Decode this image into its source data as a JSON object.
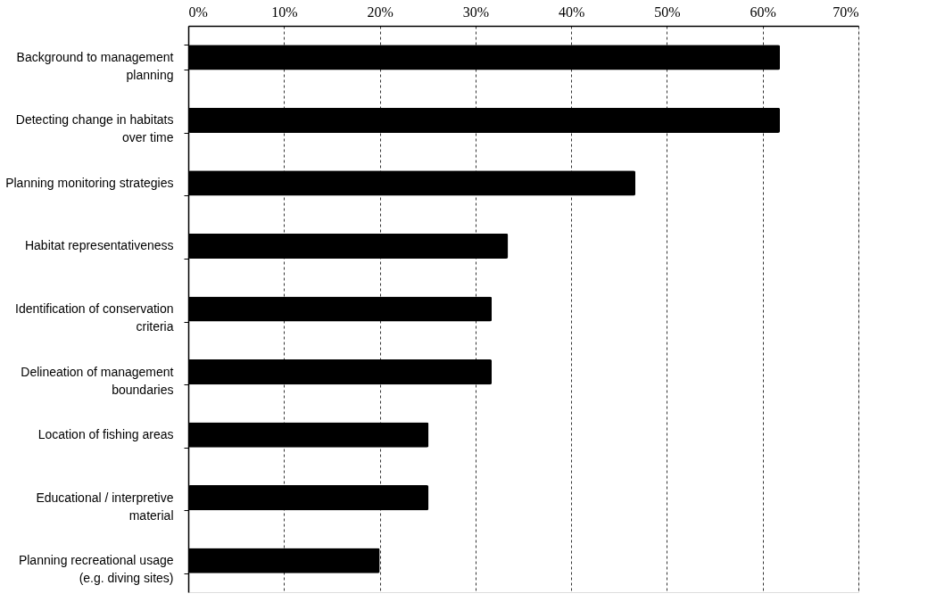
{
  "chart_data": {
    "type": "bar",
    "orientation": "horizontal",
    "categories": [
      "Background to management planning",
      "Detecting change in habitats over time",
      "Planning monitoring strategies",
      "Habitat representativeness",
      "Identification of conservation criteria",
      "Delineation of management boundaries",
      "Location of fishing areas",
      "Educational / interpretive material",
      "Planning recreational usage (e.g. diving sites)"
    ],
    "values": [
      61.8,
      61.8,
      46.7,
      33.4,
      31.7,
      31.7,
      25.1,
      25.1,
      20.0
    ],
    "color": "#000000",
    "xlim": [
      0,
      70
    ],
    "xticks": [
      {
        "value": 0,
        "label": "0%"
      },
      {
        "value": 10,
        "label": "10%"
      },
      {
        "value": 20,
        "label": "20%"
      },
      {
        "value": 30,
        "label": "30%"
      },
      {
        "value": 40,
        "label": "40%"
      },
      {
        "value": 50,
        "label": "50%"
      },
      {
        "value": 60,
        "label": "60%"
      },
      {
        "value": 70,
        "label": "70%"
      }
    ],
    "grid": "x"
  }
}
